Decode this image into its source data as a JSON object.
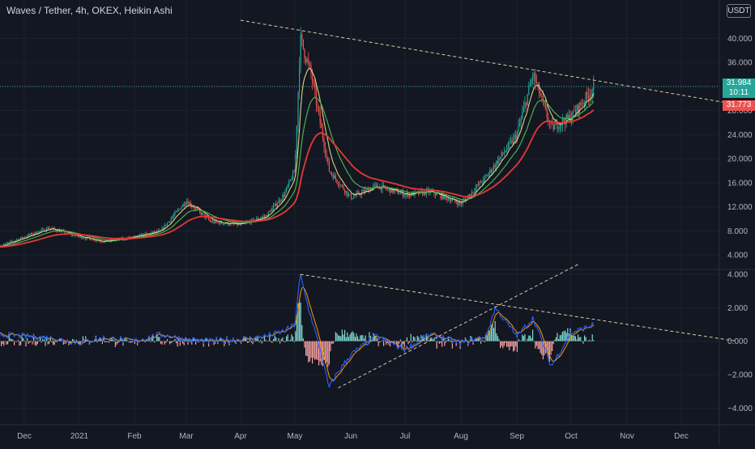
{
  "header": {
    "title": "Waves / Tether, 4h, OKEX, Heikin Ashi",
    "currency": "USDT"
  },
  "price_tags": {
    "last": "31.984",
    "countdown": "10:11",
    "ma": "31.773",
    "last_color": "#26a69a",
    "ma_color": "#ef5350"
  },
  "colors": {
    "background": "#131722",
    "up": "#26a69a",
    "down": "#ef5350",
    "ema_fast": "#4caf50",
    "ema_mid": "#f0e68c",
    "ema_slow": "#e53935",
    "osc_fast": "#2962ff",
    "osc_slow": "#ff9800",
    "trendline": "#d9c9a3"
  },
  "chart_data": [
    {
      "type": "candlestick",
      "name": "price",
      "x": [
        "Nov 18",
        "Dec 1",
        "Dec 15",
        "Jan 1",
        "Jan 15",
        "Feb 1",
        "Feb 15",
        "Mar 1",
        "Mar 15",
        "Apr 1",
        "Apr 15",
        "Apr 25",
        "May 1",
        "May 4",
        "May 10",
        "May 15",
        "May 20",
        "Jun 1",
        "Jun 15",
        "Jul 1",
        "Jul 15",
        "Aug 1",
        "Aug 15",
        "Sep 1",
        "Sep 10",
        "Sep 20",
        "Oct 1",
        "Oct 14"
      ],
      "y": [
        5.5,
        7.0,
        8.5,
        7.0,
        6.2,
        7.0,
        8.0,
        13.0,
        9.5,
        9.0,
        10.5,
        14.0,
        18.0,
        40.0,
        34.0,
        26.0,
        18.0,
        13.5,
        15.5,
        14.0,
        14.5,
        12.5,
        17.0,
        24.0,
        34.0,
        25.0,
        27.0,
        32.0
      ],
      "ylim": [
        2.0,
        43.0
      ],
      "yticks": [
        4,
        8,
        12,
        16,
        20,
        24,
        28,
        32,
        36,
        40
      ],
      "ytick_labels": [
        "4.000",
        "8.000",
        "12.000",
        "16.000",
        "20.000",
        "24.000",
        "28.000",
        "32.000",
        "36.000",
        "40.000"
      ],
      "trendline": [
        [
          "Apr 1",
          43.0
        ],
        [
          "Dec 31",
          29.0
        ]
      ],
      "last_price": 31.984,
      "ma_price": 31.773
    },
    {
      "type": "line",
      "name": "oscillator",
      "x": [
        "Nov 18",
        "Dec 1",
        "Dec 15",
        "Jan 1",
        "Jan 15",
        "Feb 1",
        "Feb 15",
        "Mar 1",
        "Mar 15",
        "Apr 1",
        "Apr 15",
        "Apr 25",
        "May 1",
        "May 4",
        "May 8",
        "May 15",
        "May 20",
        "May 24",
        "Jun 1",
        "Jun 15",
        "Jul 1",
        "Jul 15",
        "Aug 1",
        "Aug 15",
        "Aug 20",
        "Sep 1",
        "Sep 10",
        "Sep 20",
        "Oct 1",
        "Oct 14"
      ],
      "y": [
        0.4,
        0.3,
        0.2,
        -0.1,
        0.2,
        0.0,
        0.4,
        0.1,
        0.0,
        0.1,
        0.3,
        0.6,
        1.0,
        4.0,
        2.2,
        -0.5,
        -2.8,
        -2.0,
        -0.8,
        0.3,
        -0.5,
        0.4,
        -0.1,
        0.3,
        2.0,
        0.3,
        1.4,
        -1.5,
        0.5,
        1.0
      ],
      "ylim": [
        -5.0,
        4.2
      ],
      "yticks": [
        -4,
        -2,
        0,
        2,
        4
      ],
      "ytick_labels": [
        "−4.000",
        "−2.000",
        "0.000",
        "2.000",
        "4.000"
      ],
      "trendlines": [
        [
          [
            "May 4",
            4.0
          ],
          [
            "Dec 31",
            0.0
          ]
        ],
        [
          [
            "May 25",
            -2.8
          ],
          [
            "Oct 5",
            4.6
          ]
        ]
      ]
    }
  ],
  "time_axis": {
    "labels": [
      "Dec",
      "2021",
      "Feb",
      "Mar",
      "Apr",
      "May",
      "Jun",
      "Jul",
      "Aug",
      "Sep",
      "Oct",
      "Nov",
      "Dec"
    ]
  }
}
